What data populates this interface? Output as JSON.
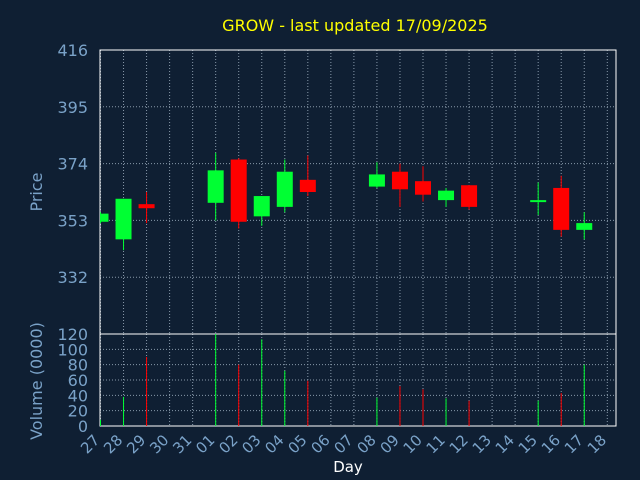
{
  "chart_data": [
    {
      "type": "candlestick",
      "title": "GROW - last updated 17/09/2025",
      "ylabel": "Price",
      "yticks": [
        332,
        353,
        374,
        395,
        416
      ],
      "ylim": [
        311,
        416
      ],
      "grid": true,
      "candles": [
        {
          "day": "27",
          "open": 352.5,
          "high": 356,
          "low": 352,
          "close": 355.5
        },
        {
          "day": "28",
          "open": 346,
          "high": 361,
          "low": 342,
          "close": 361
        },
        {
          "day": "29",
          "open": 359,
          "high": 363.5,
          "low": 352,
          "close": 357.5
        },
        {
          "day": "01",
          "open": 359.5,
          "high": 378,
          "low": 353,
          "close": 371.5
        },
        {
          "day": "02",
          "open": 375.5,
          "high": 376,
          "low": 350,
          "close": 352.5
        },
        {
          "day": "03",
          "open": 354.5,
          "high": 362,
          "low": 351,
          "close": 362
        },
        {
          "day": "04",
          "open": 358,
          "high": 375.5,
          "low": 356,
          "close": 371
        },
        {
          "day": "05",
          "open": 368,
          "high": 377,
          "low": 362,
          "close": 363.5
        },
        {
          "day": "08",
          "open": 365.5,
          "high": 374.5,
          "low": 365,
          "close": 370
        },
        {
          "day": "09",
          "open": 371,
          "high": 374,
          "low": 358,
          "close": 364.5
        },
        {
          "day": "10",
          "open": 367.5,
          "high": 373,
          "low": 360,
          "close": 362.5
        },
        {
          "day": "11",
          "open": 360.5,
          "high": 365,
          "low": 358,
          "close": 364
        },
        {
          "day": "12",
          "open": 366,
          "high": 366,
          "low": 357,
          "close": 358
        },
        {
          "day": "15",
          "open": 360.5,
          "high": 367,
          "low": 355,
          "close": 360.5
        },
        {
          "day": "16",
          "open": 365,
          "high": 369.5,
          "low": 347,
          "close": 349.5
        },
        {
          "day": "17",
          "open": 349.5,
          "high": 356,
          "low": 346,
          "close": 352
        }
      ]
    },
    {
      "type": "bar",
      "ylabel": "Volume (0000)",
      "xlabel": "Day",
      "yticks": [
        0,
        20,
        40,
        60,
        80,
        100,
        120
      ],
      "ylim": [
        0,
        120
      ],
      "xtick_labels": [
        "27",
        "28",
        "29",
        "30",
        "31",
        "01",
        "02",
        "03",
        "04",
        "05",
        "06",
        "07",
        "08",
        "09",
        "10",
        "11",
        "12",
        "13",
        "14",
        "15",
        "16",
        "17",
        "18"
      ],
      "categories": [
        "27",
        "28",
        "29",
        "01",
        "02",
        "03",
        "04",
        "05",
        "08",
        "09",
        "10",
        "11",
        "12",
        "15",
        "16",
        "17"
      ],
      "values": [
        8,
        38,
        90,
        120,
        80,
        113,
        72,
        59,
        37,
        52,
        48,
        36,
        33,
        33,
        43,
        80
      ],
      "direction": [
        "up",
        "up",
        "down",
        "up",
        "down",
        "up",
        "up",
        "down",
        "up",
        "down",
        "down",
        "up",
        "down",
        "up",
        "down",
        "up"
      ]
    }
  ],
  "colors": {
    "background": "#0f1f33",
    "axis": "#ffffff",
    "grid": "#8899aa",
    "text": "#7aa2c8",
    "title": "#ffff00",
    "up": "#00ff33",
    "down": "#ff0000"
  }
}
